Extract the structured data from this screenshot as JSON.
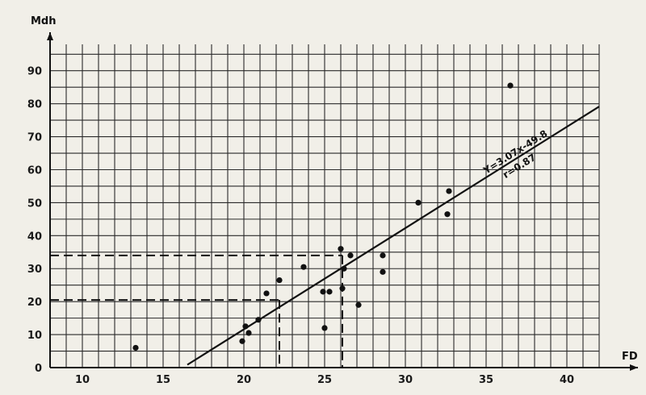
{
  "chart_data": {
    "type": "scatter",
    "xlabel": "FD",
    "ylabel": "Mdh",
    "xlim": [
      8,
      42
    ],
    "ylim": [
      0,
      98
    ],
    "x_ticks": [
      10,
      15,
      20,
      25,
      30,
      35,
      40
    ],
    "y_ticks": [
      0,
      10,
      20,
      30,
      40,
      50,
      60,
      70,
      80,
      90
    ],
    "grid": true,
    "points": [
      {
        "x": 13.3,
        "y": 6
      },
      {
        "x": 19.9,
        "y": 8
      },
      {
        "x": 20.1,
        "y": 12.5
      },
      {
        "x": 20.3,
        "y": 10.5
      },
      {
        "x": 20.9,
        "y": 14.5
      },
      {
        "x": 21.4,
        "y": 22.5
      },
      {
        "x": 22.2,
        "y": 26.5
      },
      {
        "x": 23.7,
        "y": 30.5
      },
      {
        "x": 24.9,
        "y": 23
      },
      {
        "x": 25.0,
        "y": 12
      },
      {
        "x": 25.3,
        "y": 23
      },
      {
        "x": 26.0,
        "y": 36
      },
      {
        "x": 26.1,
        "y": 24
      },
      {
        "x": 26.2,
        "y": 30
      },
      {
        "x": 26.6,
        "y": 34
      },
      {
        "x": 27.1,
        "y": 19
      },
      {
        "x": 28.6,
        "y": 34
      },
      {
        "x": 28.6,
        "y": 29
      },
      {
        "x": 30.8,
        "y": 50
      },
      {
        "x": 32.6,
        "y": 46.5
      },
      {
        "x": 32.7,
        "y": 53.5
      },
      {
        "x": 36.5,
        "y": 85.5
      }
    ],
    "regression": {
      "equation": "Y=3.07x-49.8",
      "r_label": "r=0.87",
      "x_from": 16.5,
      "x_to": 42
    },
    "guides": [
      {
        "x": 22.2,
        "y": 20.5
      },
      {
        "x": 26.1,
        "y": 34
      }
    ]
  }
}
